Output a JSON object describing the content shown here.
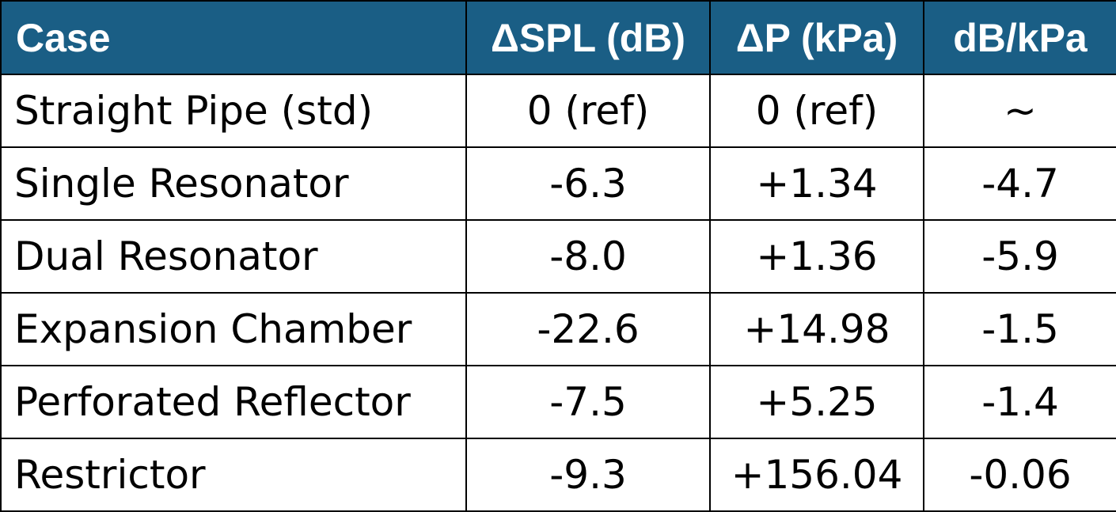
{
  "chart_data": {
    "type": "table",
    "columns": [
      "Case",
      "ΔSPL (dB)",
      "ΔP (kPa)",
      "dB/kPa"
    ],
    "rows": [
      [
        "Straight Pipe (std)",
        "0 (ref)",
        "0 (ref)",
        "~"
      ],
      [
        "Single Resonator",
        "-6.3",
        "+1.34",
        "-4.7"
      ],
      [
        "Dual Resonator",
        "-8.0",
        "+1.36",
        "-5.9"
      ],
      [
        "Expansion Chamber",
        "-22.6",
        "+14.98",
        "-1.5"
      ],
      [
        "Perforated Reflector",
        "-7.5",
        "+5.25",
        "-1.4"
      ],
      [
        "Restrictor",
        "-9.3",
        "+156.04",
        "-0.06"
      ]
    ],
    "header_color": "#1a5e85",
    "header_text_color": "#ffffff"
  }
}
